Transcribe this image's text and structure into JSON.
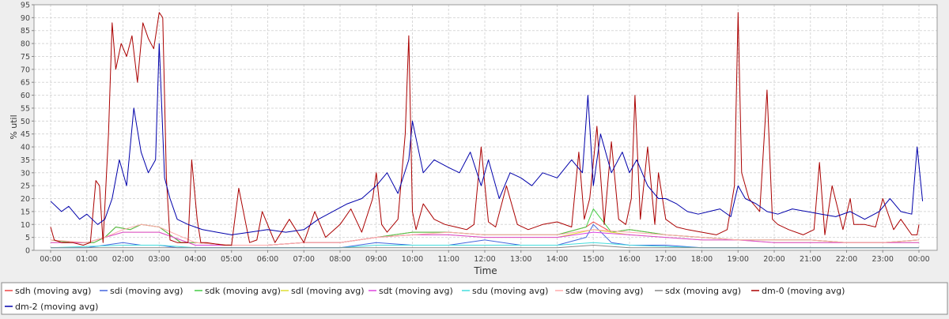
{
  "chart_data": {
    "type": "line",
    "title": "",
    "xlabel": "Time",
    "ylabel": "% util",
    "xlim": [
      0,
      24.1
    ],
    "ylim": [
      0,
      95
    ],
    "x_ticks": [
      "00:00",
      "01:00",
      "02:00",
      "03:00",
      "04:00",
      "05:00",
      "06:00",
      "07:00",
      "08:00",
      "09:00",
      "10:00",
      "11:00",
      "12:00",
      "13:00",
      "14:00",
      "15:00",
      "16:00",
      "17:00",
      "18:00",
      "19:00",
      "20:00",
      "21:00",
      "22:00",
      "23:00",
      "00:00"
    ],
    "y_ticks": [
      0,
      5,
      10,
      15,
      20,
      25,
      30,
      35,
      40,
      45,
      50,
      55,
      60,
      65,
      70,
      75,
      80,
      85,
      90,
      95
    ],
    "grid": true,
    "legend_position": "bottom",
    "series": [
      {
        "name": "sdh (moving avg)",
        "color": "#ee4444",
        "x": [
          0,
          0.6,
          1.2,
          1.5,
          1.8,
          2.2,
          2.5,
          3.0,
          3.3,
          3.6,
          4.0,
          5.0,
          6.0,
          7.0,
          8.0,
          9.0,
          9.5,
          10.0,
          11.0,
          12.0,
          13.0,
          14.0,
          14.8,
          15.0,
          15.5,
          16.0,
          17.0,
          18.0,
          19.0,
          20.0,
          21.0,
          22.0,
          23.0,
          24.0
        ],
        "y": [
          4,
          3,
          3,
          5,
          9,
          8,
          10,
          9,
          6,
          3,
          3,
          2,
          2,
          3,
          3,
          5,
          6,
          7,
          7,
          6,
          6,
          6,
          9,
          11,
          7,
          8,
          6,
          5,
          4,
          4,
          4,
          3,
          3,
          4
        ]
      },
      {
        "name": "sdi (moving avg)",
        "color": "#4466dd",
        "x": [
          0,
          1.0,
          1.5,
          2.0,
          2.5,
          3.0,
          3.5,
          4.0,
          5.0,
          6.0,
          7.0,
          8.0,
          9.0,
          10.0,
          11.0,
          12.0,
          13.0,
          14.0,
          14.8,
          15.0,
          15.5,
          16.0,
          17.0,
          18.0,
          19.0,
          20.0,
          21.0,
          22.0,
          23.0,
          24.0
        ],
        "y": [
          1,
          1,
          2,
          3,
          2,
          2,
          1,
          1,
          1,
          1,
          1,
          1,
          3,
          2,
          2,
          4,
          2,
          2,
          5,
          10,
          3,
          2,
          2,
          1,
          1,
          1,
          1,
          1,
          1,
          1
        ]
      },
      {
        "name": "sdk (moving avg)",
        "color": "#44cc44",
        "x": [
          0,
          0.6,
          1.2,
          1.5,
          1.8,
          2.2,
          2.5,
          3.0,
          3.3,
          3.6,
          4.0,
          5.0,
          6.0,
          7.0,
          8.0,
          9.0,
          9.5,
          10.0,
          11.0,
          12.0,
          13.0,
          14.0,
          14.8,
          15.0,
          15.5,
          16.0,
          17.0,
          18.0,
          19.0,
          20.0,
          21.0,
          22.0,
          23.0,
          24.0
        ],
        "y": [
          4,
          3,
          3,
          5,
          9,
          8,
          10,
          9,
          6,
          3,
          3,
          2,
          2,
          3,
          3,
          5,
          6,
          7,
          7,
          6,
          6,
          6,
          9,
          16,
          7,
          8,
          6,
          5,
          4,
          4,
          4,
          3,
          3,
          4
        ]
      },
      {
        "name": "sdl (moving avg)",
        "color": "#dddd33",
        "x": [
          0,
          1.0,
          2.0,
          3.0,
          4.0,
          5.0,
          6.0,
          7.0,
          8.0,
          9.0,
          10.0,
          11.0,
          12.0,
          13.0,
          14.0,
          15.0,
          16.0,
          17.0,
          18.0,
          19.0,
          20.0,
          21.0,
          22.0,
          23.0,
          24.0
        ],
        "y": [
          3,
          3,
          7,
          7,
          2,
          2,
          2,
          3,
          3,
          5,
          6,
          6,
          5,
          5,
          5,
          8,
          6,
          5,
          4,
          4,
          3,
          3,
          3,
          3,
          3
        ]
      },
      {
        "name": "sdt (moving avg)",
        "color": "#dd44dd",
        "x": [
          0,
          1.0,
          2.0,
          3.0,
          4.0,
          5.0,
          6.0,
          7.0,
          8.0,
          9.0,
          10.0,
          11.0,
          12.0,
          13.0,
          14.0,
          15.0,
          16.0,
          17.0,
          18.0,
          19.0,
          20.0,
          21.0,
          22.0,
          23.0,
          24.0
        ],
        "y": [
          3,
          3,
          7,
          7,
          2,
          2,
          2,
          3,
          3,
          5,
          6,
          6,
          5,
          5,
          5,
          7,
          6,
          5,
          4,
          4,
          3,
          3,
          3,
          3,
          3
        ]
      },
      {
        "name": "sdu (moving avg)",
        "color": "#44dddd",
        "x": [
          0,
          2.0,
          3.0,
          4.0,
          8.0,
          9.0,
          10.0,
          12.0,
          14.0,
          15.0,
          16.0,
          18.0,
          20.0,
          22.0,
          24.0
        ],
        "y": [
          1,
          2,
          2,
          1,
          1,
          2,
          2,
          2,
          2,
          3,
          2,
          1,
          1,
          1,
          1
        ]
      },
      {
        "name": "sdw (moving avg)",
        "color": "#ffaaaa",
        "x": [
          0,
          1.0,
          1.5,
          2.0,
          2.5,
          3.0,
          3.5,
          4.0,
          5.0,
          6.0,
          7.0,
          8.0,
          9.0,
          10.0,
          11.0,
          12.0,
          13.0,
          14.0,
          15.0,
          16.0,
          17.0,
          18.0,
          19.0,
          20.0,
          21.0,
          22.0,
          23.0,
          24.0
        ],
        "y": [
          4,
          3,
          5,
          8,
          10,
          9,
          6,
          3,
          2,
          2,
          3,
          3,
          5,
          6,
          7,
          6,
          6,
          6,
          8,
          7,
          6,
          5,
          4,
          4,
          4,
          3,
          3,
          4
        ]
      },
      {
        "name": "sdx (moving avg)",
        "color": "#888888",
        "x": [
          0,
          2.0,
          3.0,
          4.0,
          8.0,
          9.0,
          10.0,
          12.0,
          14.0,
          15.0,
          16.0,
          18.0,
          20.0,
          22.0,
          24.0
        ],
        "y": [
          1,
          1,
          1,
          1,
          1,
          1,
          1,
          1,
          1,
          2,
          1,
          1,
          1,
          1,
          1
        ]
      },
      {
        "name": "dm-0 (moving avg)",
        "color": "#aa0000",
        "x": [
          0,
          0.1,
          0.3,
          0.6,
          0.9,
          1.1,
          1.25,
          1.35,
          1.45,
          1.6,
          1.7,
          1.8,
          1.95,
          2.1,
          2.25,
          2.4,
          2.55,
          2.7,
          2.85,
          3.0,
          3.1,
          3.2,
          3.3,
          3.5,
          3.8,
          3.9,
          4.05,
          4.15,
          4.3,
          4.8,
          5.0,
          5.2,
          5.5,
          5.7,
          5.85,
          6.2,
          6.6,
          7.0,
          7.3,
          7.6,
          8.0,
          8.3,
          8.6,
          8.9,
          9.0,
          9.15,
          9.3,
          9.6,
          9.8,
          9.9,
          10.0,
          10.1,
          10.3,
          10.6,
          10.9,
          11.2,
          11.5,
          11.7,
          11.9,
          12.1,
          12.3,
          12.6,
          12.9,
          13.2,
          13.6,
          14.0,
          14.4,
          14.6,
          14.75,
          14.9,
          15.1,
          15.3,
          15.5,
          15.7,
          15.9,
          16.05,
          16.15,
          16.3,
          16.5,
          16.7,
          16.8,
          17.0,
          17.3,
          17.6,
          18.0,
          18.4,
          18.7,
          18.9,
          19.0,
          19.1,
          19.3,
          19.6,
          19.8,
          19.95,
          20.1,
          20.4,
          20.8,
          21.1,
          21.25,
          21.4,
          21.6,
          21.9,
          22.1,
          22.2,
          22.5,
          22.8,
          23.0,
          23.3,
          23.5,
          23.8,
          23.95,
          24.0
        ],
        "y": [
          9,
          4,
          3,
          3,
          2,
          3,
          27,
          25,
          3,
          45,
          88,
          70,
          80,
          75,
          83,
          65,
          88,
          82,
          78,
          92,
          90,
          28,
          4,
          3,
          3,
          35,
          12,
          3,
          3,
          2,
          2,
          24,
          3,
          4,
          15,
          3,
          12,
          3,
          15,
          5,
          10,
          16,
          7,
          20,
          30,
          10,
          7,
          12,
          45,
          83,
          15,
          8,
          18,
          12,
          10,
          9,
          8,
          10,
          40,
          11,
          9,
          25,
          10,
          8,
          10,
          11,
          9,
          38,
          12,
          20,
          48,
          10,
          42,
          12,
          10,
          20,
          60,
          12,
          40,
          10,
          30,
          12,
          9,
          8,
          7,
          6,
          8,
          25,
          92,
          30,
          20,
          15,
          62,
          12,
          10,
          8,
          6,
          8,
          34,
          6,
          25,
          8,
          20,
          10,
          10,
          9,
          20,
          8,
          12,
          6,
          6,
          10
        ]
      },
      {
        "name": "dm-2 (moving avg)",
        "color": "#0000aa",
        "x": [
          0,
          0.3,
          0.5,
          0.8,
          1.0,
          1.3,
          1.5,
          1.7,
          1.9,
          2.1,
          2.3,
          2.5,
          2.7,
          2.9,
          3.0,
          3.15,
          3.3,
          3.5,
          3.8,
          4.2,
          4.6,
          5.0,
          5.5,
          6.0,
          6.5,
          7.0,
          7.4,
          7.8,
          8.2,
          8.6,
          9.0,
          9.3,
          9.6,
          9.9,
          10.0,
          10.3,
          10.6,
          11.0,
          11.3,
          11.6,
          11.9,
          12.1,
          12.4,
          12.7,
          13.0,
          13.3,
          13.6,
          14.0,
          14.4,
          14.7,
          14.85,
          15.0,
          15.2,
          15.5,
          15.8,
          16.0,
          16.2,
          16.5,
          16.8,
          17.0,
          17.3,
          17.6,
          17.9,
          18.2,
          18.5,
          18.8,
          19.0,
          19.2,
          19.5,
          19.8,
          20.1,
          20.5,
          20.9,
          21.3,
          21.7,
          22.1,
          22.5,
          22.9,
          23.2,
          23.5,
          23.8,
          23.95,
          24.1
        ],
        "y": [
          19,
          15,
          17,
          12,
          14,
          10,
          12,
          20,
          35,
          25,
          55,
          38,
          30,
          35,
          80,
          28,
          20,
          12,
          10,
          8,
          7,
          6,
          7,
          8,
          7,
          8,
          12,
          15,
          18,
          20,
          25,
          30,
          22,
          35,
          50,
          30,
          35,
          32,
          30,
          38,
          25,
          35,
          20,
          30,
          28,
          25,
          30,
          28,
          35,
          30,
          60,
          25,
          45,
          30,
          38,
          30,
          35,
          25,
          20,
          20,
          18,
          15,
          14,
          15,
          16,
          13,
          25,
          20,
          18,
          15,
          14,
          16,
          15,
          14,
          13,
          15,
          12,
          15,
          20,
          15,
          14,
          40,
          19
        ]
      }
    ]
  }
}
